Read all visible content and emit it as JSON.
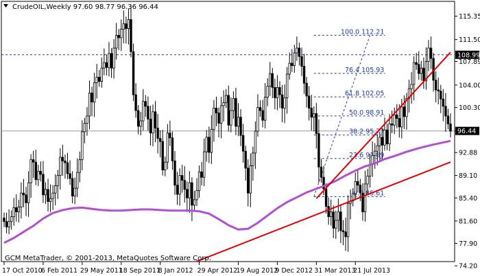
{
  "header": {
    "symbol_line": "CrudeOIL,Weekly  97.60 98.77 96.36 96.44"
  },
  "footer": {
    "copyright": "GCM MetaTrader, © 2001-2013, MetaQuotes Software Corp."
  },
  "colors": {
    "background": "#ffffff",
    "candles": "#000000",
    "moving_average": "#b050d0",
    "trendlines": "#e00000",
    "fib_lines": "#1f3a9b",
    "current_price_bg": "#000000",
    "fib_high_bg": "#000000"
  },
  "chart_data": {
    "type": "candlestick",
    "title": "",
    "xlabel": "",
    "ylabel": "",
    "grid": false,
    "ylim": [
      74.0,
      117.0
    ],
    "y_ticks": [
      "115.35",
      "111.50",
      "107.89",
      "104.00",
      "100.30",
      "96.44",
      "92.88",
      "89.10",
      "85.40",
      "81.60",
      "77.90",
      "74.20"
    ],
    "y_tick_values": [
      115.35,
      111.5,
      107.89,
      104.0,
      100.3,
      96.44,
      92.88,
      89.1,
      85.4,
      81.6,
      77.9,
      74.2
    ],
    "x_ticks": [
      "17 Oct 2010",
      "6 Feb 2011",
      "29 May 2011",
      "18 Sep 2011",
      "8 Jan 2012",
      "29 Apr 2012",
      "19 Aug 2012",
      "9 Dec 2012",
      "31 Mar 2013",
      "21 Jul 2013"
    ],
    "x_tick_weeks": [
      0,
      16,
      32,
      48,
      64,
      80,
      96,
      112,
      128,
      144
    ],
    "current_price": 96.44,
    "current_price_label": "96.44",
    "level_line": 108.99,
    "level_line_label": "108.99",
    "fib_levels": [
      {
        "label": "100.0 112.21",
        "value": 112.21
      },
      {
        "label": "76.4 105.93",
        "value": 105.93
      },
      {
        "label": "61.8 102.05",
        "value": 102.05
      },
      {
        "label": "50.0 98.91",
        "value": 98.91
      },
      {
        "label": "38.2 95.77",
        "value": 95.77
      },
      {
        "label": "23.6 91.89",
        "value": 91.89
      },
      {
        "label": "0.0 85.61",
        "value": 85.61
      }
    ],
    "fib_range": {
      "from_week": 127,
      "to_week": 155
    },
    "trendlines": [
      {
        "from": [
          73,
          74.0
        ],
        "to": [
          183,
          91.3
        ]
      },
      {
        "from": [
          128,
          85.3
        ],
        "to": [
          183,
          109.4
        ]
      }
    ],
    "moving_average": [
      [
        0,
        78.0
      ],
      [
        4,
        78.8
      ],
      [
        8,
        79.8
      ],
      [
        12,
        80.8
      ],
      [
        16,
        82.0
      ],
      [
        20,
        82.9
      ],
      [
        24,
        83.4
      ],
      [
        28,
        83.7
      ],
      [
        32,
        83.8
      ],
      [
        36,
        83.6
      ],
      [
        40,
        83.4
      ],
      [
        44,
        83.3
      ],
      [
        48,
        83.3
      ],
      [
        52,
        83.4
      ],
      [
        56,
        83.5
      ],
      [
        60,
        83.5
      ],
      [
        64,
        83.4
      ],
      [
        68,
        83.3
      ],
      [
        72,
        83.3
      ],
      [
        76,
        83.3
      ],
      [
        80,
        83.2
      ],
      [
        84,
        82.8
      ],
      [
        88,
        81.9
      ],
      [
        92,
        80.9
      ],
      [
        96,
        80.2
      ],
      [
        100,
        80.3
      ],
      [
        104,
        81.3
      ],
      [
        108,
        82.5
      ],
      [
        112,
        83.7
      ],
      [
        116,
        84.7
      ],
      [
        120,
        85.5
      ],
      [
        124,
        86.3
      ],
      [
        128,
        86.9
      ],
      [
        132,
        87.5
      ],
      [
        136,
        88.2
      ],
      [
        140,
        89.1
      ],
      [
        144,
        89.9
      ],
      [
        148,
        90.6
      ],
      [
        152,
        91.1
      ],
      [
        156,
        91.8
      ],
      [
        160,
        92.3
      ],
      [
        165,
        93.0
      ],
      [
        170,
        93.6
      ],
      [
        175,
        94.1
      ],
      [
        183,
        94.8
      ]
    ],
    "closes": [
      81.5,
      80.6,
      81.5,
      82.3,
      83.8,
      83.1,
      83.9,
      86.2,
      85.9,
      84.6,
      87.9,
      91.7,
      91.3,
      88.4,
      89.8,
      89.3,
      85.9,
      86.8,
      84.8,
      85.3,
      86.2,
      87.4,
      89.1,
      92.1,
      91.5,
      91.2,
      89.4,
      88.6,
      85.7,
      87.0,
      89.6,
      91.7,
      96.3,
      97.7,
      98.9,
      102.7,
      101.2,
      104.4,
      105.3,
      104.6,
      106.8,
      107.7,
      106.9,
      109.2,
      106.8,
      110.1,
      112.2,
      111.8,
      113.2,
      114.1,
      113.3,
      114.8,
      109.5,
      102.4,
      99.8,
      97.2,
      98.1,
      101.3,
      100.5,
      98.4,
      96.1,
      99.6,
      96.9,
      95.2,
      94.7,
      90.0,
      91.3,
      96.1,
      95.3,
      91.5,
      87.5,
      86.0,
      89.1,
      88.3,
      86.8,
      85.4,
      87.9,
      84.2,
      85.1,
      86.6,
      89.7,
      88.8,
      93.0,
      95.4,
      92.9,
      96.7,
      100.2,
      99.4,
      97.7,
      100.6,
      101.1,
      102.3,
      97.4,
      99.8,
      101.8,
      97.2,
      98.7,
      95.7,
      93.1,
      90.3,
      86.2,
      90.7,
      92.8,
      96.4,
      100.3,
      99.8,
      98.2,
      102.0,
      103.8,
      105.9,
      103.6,
      101.9,
      103.6,
      102.4,
      100.2,
      101.9,
      105.8,
      107.6,
      107.2,
      109.3,
      110.1,
      108.7,
      107.1,
      104.3,
      102.2,
      100.2,
      98.7,
      99.3,
      96.0,
      90.5,
      88.8,
      86.9,
      84.0,
      82.3,
      83.1,
      80.4,
      81.7,
      83.1,
      80.0,
      79.8,
      79.0,
      84.5,
      84.9,
      86.1,
      88.1,
      87.5,
      86.2,
      83.1,
      87.7,
      89.0,
      90.9,
      92.4,
      93.1,
      94.0,
      95.4,
      94.1,
      96.6,
      94.3,
      97.6,
      97.4,
      99.1,
      98.5,
      97.1,
      100.4,
      98.8,
      101.8,
      103.4,
      104.1,
      107.7,
      107.4,
      105.9,
      106.8,
      104.7,
      107.9,
      110.1,
      108.4,
      104.8,
      103.2,
      103.0,
      101.7,
      100.5,
      98.9,
      97.6,
      96.4
    ],
    "x": "weeks since 17 Oct 2010"
  }
}
